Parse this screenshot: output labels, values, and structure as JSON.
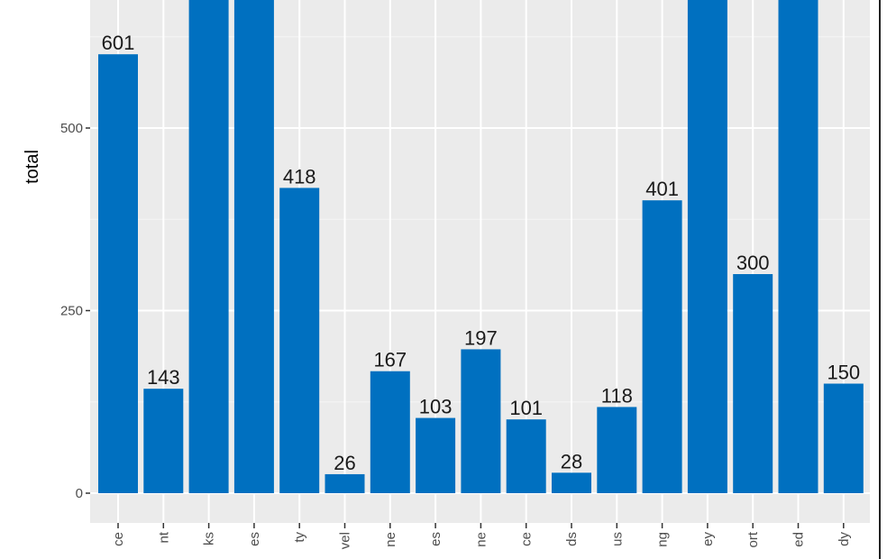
{
  "chart_data": {
    "type": "bar",
    "ylabel": "total",
    "xlabel": "",
    "categories": [
      "ce",
      "nt",
      "ks",
      "es",
      "ty",
      "vel",
      "ne",
      "es",
      "ne",
      "ce",
      "ds",
      "us",
      "ng",
      "ey",
      "ort",
      "ed",
      "dy"
    ],
    "values": [
      601,
      143,
      680,
      680,
      418,
      26,
      167,
      103,
      197,
      101,
      28,
      118,
      401,
      680,
      300,
      680,
      150
    ],
    "data_labels": [
      "601",
      "143",
      "",
      "",
      "418",
      "26",
      "167",
      "103",
      "197",
      "101",
      "28",
      "118",
      "401",
      "",
      "300",
      "",
      "150"
    ],
    "yticks": [
      0,
      250,
      500
    ],
    "ytick_labels": [
      "0",
      "250",
      "500"
    ],
    "ylim": [
      -40,
      670
    ],
    "grid": true,
    "colors": {
      "bar": "#0070C0",
      "panel": "#EBEBEB",
      "grid_major": "#FFFFFF",
      "grid_minor": "#F5F5F5"
    }
  }
}
